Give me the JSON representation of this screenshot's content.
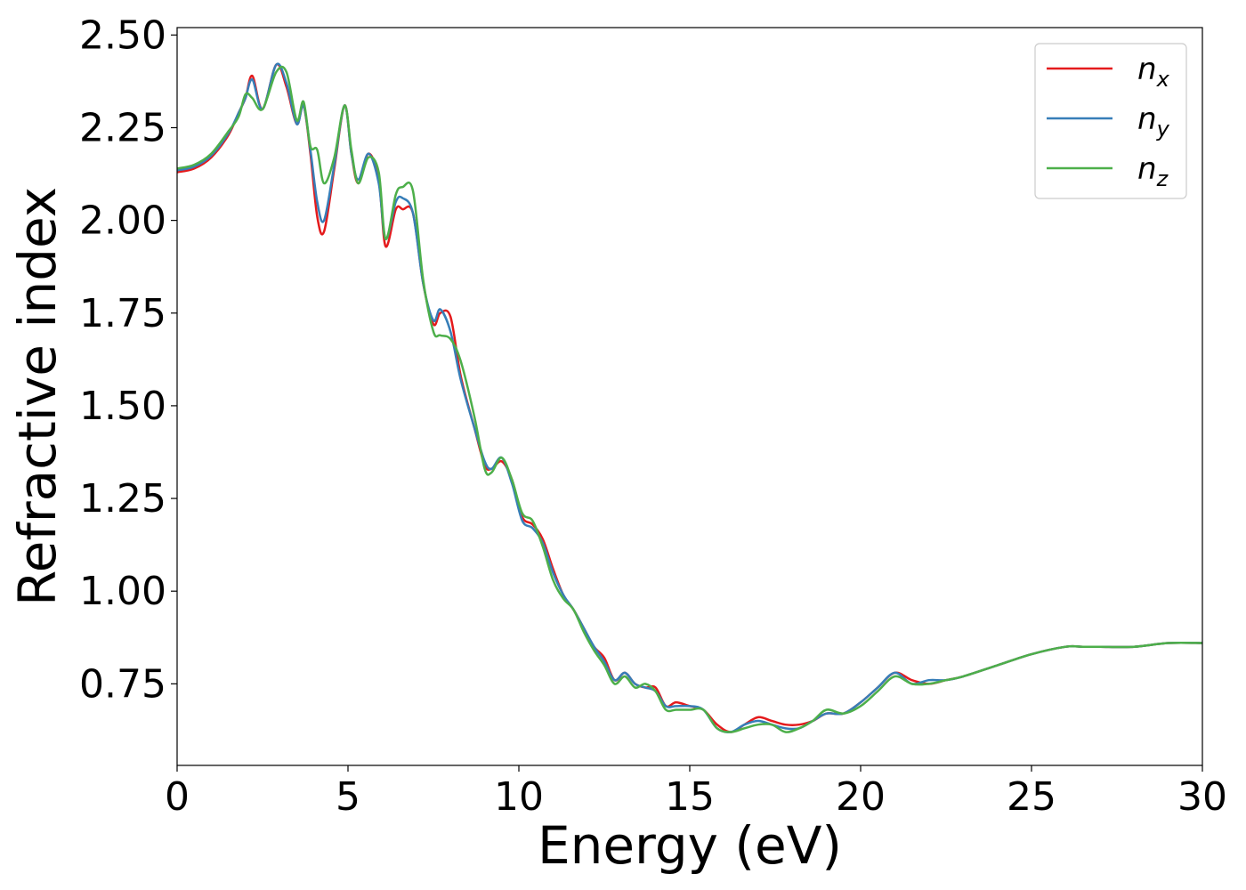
{
  "chart_data": {
    "type": "line",
    "xlabel": "Energy (eV)",
    "ylabel": "Refractive index",
    "xlim": [
      0,
      30
    ],
    "ylim": [
      0.53,
      2.52
    ],
    "xticks": [
      0,
      5,
      10,
      15,
      20,
      25,
      30
    ],
    "xtick_labels": [
      "0",
      "5",
      "10",
      "15",
      "20",
      "25",
      "30"
    ],
    "yticks": [
      0.75,
      1.0,
      1.25,
      1.5,
      1.75,
      2.0,
      2.25,
      2.5
    ],
    "ytick_labels": [
      "0.75",
      "1.00",
      "1.25",
      "1.50",
      "1.75",
      "2.00",
      "2.25",
      "2.50"
    ],
    "grid": false,
    "legend_position": "top-right",
    "series": [
      {
        "name": "n",
        "subscript": "x",
        "color": "#e41a1c",
        "points": [
          [
            0,
            2.13
          ],
          [
            0.5,
            2.14
          ],
          [
            1,
            2.17
          ],
          [
            1.5,
            2.23
          ],
          [
            1.8,
            2.29
          ],
          [
            2.0,
            2.33
          ],
          [
            2.2,
            2.39
          ],
          [
            2.5,
            2.3
          ],
          [
            2.9,
            2.42
          ],
          [
            3.2,
            2.36
          ],
          [
            3.5,
            2.26
          ],
          [
            3.7,
            2.31
          ],
          [
            3.9,
            2.18
          ],
          [
            4.1,
            2.01
          ],
          [
            4.3,
            1.97
          ],
          [
            4.6,
            2.14
          ],
          [
            4.9,
            2.31
          ],
          [
            5.1,
            2.18
          ],
          [
            5.3,
            2.1
          ],
          [
            5.6,
            2.18
          ],
          [
            5.9,
            2.11
          ],
          [
            6.1,
            1.93
          ],
          [
            6.4,
            2.03
          ],
          [
            6.6,
            2.03
          ],
          [
            6.9,
            2.02
          ],
          [
            7.2,
            1.83
          ],
          [
            7.5,
            1.72
          ],
          [
            7.7,
            1.75
          ],
          [
            8.0,
            1.74
          ],
          [
            8.3,
            1.58
          ],
          [
            8.7,
            1.44
          ],
          [
            9.0,
            1.34
          ],
          [
            9.2,
            1.33
          ],
          [
            9.5,
            1.35
          ],
          [
            9.8,
            1.3
          ],
          [
            10.1,
            1.2
          ],
          [
            10.4,
            1.18
          ],
          [
            10.7,
            1.14
          ],
          [
            11.0,
            1.06
          ],
          [
            11.3,
            0.99
          ],
          [
            11.6,
            0.95
          ],
          [
            11.9,
            0.9
          ],
          [
            12.2,
            0.85
          ],
          [
            12.5,
            0.82
          ],
          [
            12.8,
            0.76
          ],
          [
            13.1,
            0.78
          ],
          [
            13.4,
            0.75
          ],
          [
            13.7,
            0.74
          ],
          [
            14.0,
            0.74
          ],
          [
            14.3,
            0.69
          ],
          [
            14.6,
            0.7
          ],
          [
            15.0,
            0.69
          ],
          [
            15.4,
            0.68
          ],
          [
            15.8,
            0.64
          ],
          [
            16.2,
            0.62
          ],
          [
            16.6,
            0.64
          ],
          [
            17.0,
            0.66
          ],
          [
            17.4,
            0.65
          ],
          [
            17.8,
            0.64
          ],
          [
            18.2,
            0.64
          ],
          [
            18.6,
            0.65
          ],
          [
            19.0,
            0.67
          ],
          [
            19.5,
            0.67
          ],
          [
            20.0,
            0.7
          ],
          [
            20.5,
            0.74
          ],
          [
            21.0,
            0.78
          ],
          [
            21.5,
            0.76
          ],
          [
            22.0,
            0.75
          ],
          [
            22.5,
            0.76
          ],
          [
            23.0,
            0.77
          ],
          [
            24.0,
            0.8
          ],
          [
            25.0,
            0.83
          ],
          [
            26.0,
            0.85
          ],
          [
            26.5,
            0.85
          ],
          [
            27.0,
            0.85
          ],
          [
            28.0,
            0.85
          ],
          [
            29.0,
            0.86
          ],
          [
            30.0,
            0.86
          ]
        ]
      },
      {
        "name": "n",
        "subscript": "y",
        "color": "#377eb8",
        "points": [
          [
            0,
            2.135
          ],
          [
            0.5,
            2.145
          ],
          [
            1,
            2.175
          ],
          [
            1.5,
            2.235
          ],
          [
            1.8,
            2.29
          ],
          [
            2.0,
            2.33
          ],
          [
            2.2,
            2.38
          ],
          [
            2.5,
            2.3
          ],
          [
            2.9,
            2.42
          ],
          [
            3.2,
            2.37
          ],
          [
            3.5,
            2.26
          ],
          [
            3.7,
            2.31
          ],
          [
            3.9,
            2.19
          ],
          [
            4.1,
            2.05
          ],
          [
            4.3,
            2.0
          ],
          [
            4.6,
            2.15
          ],
          [
            4.9,
            2.31
          ],
          [
            5.1,
            2.18
          ],
          [
            5.3,
            2.11
          ],
          [
            5.6,
            2.18
          ],
          [
            5.9,
            2.1
          ],
          [
            6.1,
            1.95
          ],
          [
            6.4,
            2.05
          ],
          [
            6.6,
            2.06
          ],
          [
            6.9,
            2.02
          ],
          [
            7.2,
            1.83
          ],
          [
            7.5,
            1.73
          ],
          [
            7.7,
            1.76
          ],
          [
            8.0,
            1.7
          ],
          [
            8.3,
            1.57
          ],
          [
            8.7,
            1.44
          ],
          [
            9.0,
            1.35
          ],
          [
            9.2,
            1.33
          ],
          [
            9.5,
            1.36
          ],
          [
            9.8,
            1.29
          ],
          [
            10.1,
            1.19
          ],
          [
            10.4,
            1.17
          ],
          [
            10.7,
            1.13
          ],
          [
            11.0,
            1.05
          ],
          [
            11.3,
            0.99
          ],
          [
            11.6,
            0.95
          ],
          [
            11.9,
            0.9
          ],
          [
            12.2,
            0.85
          ],
          [
            12.5,
            0.81
          ],
          [
            12.8,
            0.76
          ],
          [
            13.1,
            0.78
          ],
          [
            13.4,
            0.75
          ],
          [
            13.7,
            0.74
          ],
          [
            14.0,
            0.73
          ],
          [
            14.3,
            0.69
          ],
          [
            14.6,
            0.69
          ],
          [
            15.0,
            0.69
          ],
          [
            15.4,
            0.68
          ],
          [
            15.8,
            0.63
          ],
          [
            16.2,
            0.62
          ],
          [
            16.6,
            0.64
          ],
          [
            17.0,
            0.65
          ],
          [
            17.4,
            0.64
          ],
          [
            17.8,
            0.63
          ],
          [
            18.2,
            0.63
          ],
          [
            18.6,
            0.65
          ],
          [
            19.0,
            0.67
          ],
          [
            19.5,
            0.67
          ],
          [
            20.0,
            0.7
          ],
          [
            20.5,
            0.74
          ],
          [
            21.0,
            0.78
          ],
          [
            21.5,
            0.75
          ],
          [
            22.0,
            0.76
          ],
          [
            22.5,
            0.76
          ],
          [
            23.0,
            0.77
          ],
          [
            24.0,
            0.8
          ],
          [
            25.0,
            0.83
          ],
          [
            26.0,
            0.85
          ],
          [
            26.5,
            0.85
          ],
          [
            27.0,
            0.85
          ],
          [
            28.0,
            0.85
          ],
          [
            29.0,
            0.86
          ],
          [
            30.0,
            0.86
          ]
        ]
      },
      {
        "name": "n",
        "subscript": "z",
        "color": "#4daf4a",
        "points": [
          [
            0,
            2.14
          ],
          [
            0.5,
            2.15
          ],
          [
            1,
            2.18
          ],
          [
            1.5,
            2.24
          ],
          [
            1.8,
            2.28
          ],
          [
            2.0,
            2.34
          ],
          [
            2.2,
            2.33
          ],
          [
            2.5,
            2.3
          ],
          [
            2.9,
            2.4
          ],
          [
            3.2,
            2.4
          ],
          [
            3.5,
            2.27
          ],
          [
            3.7,
            2.32
          ],
          [
            3.9,
            2.2
          ],
          [
            4.1,
            2.19
          ],
          [
            4.3,
            2.1
          ],
          [
            4.6,
            2.17
          ],
          [
            4.9,
            2.31
          ],
          [
            5.1,
            2.19
          ],
          [
            5.3,
            2.1
          ],
          [
            5.6,
            2.17
          ],
          [
            5.9,
            2.13
          ],
          [
            6.1,
            1.95
          ],
          [
            6.4,
            2.07
          ],
          [
            6.6,
            2.09
          ],
          [
            6.9,
            2.08
          ],
          [
            7.2,
            1.84
          ],
          [
            7.5,
            1.7
          ],
          [
            7.7,
            1.69
          ],
          [
            8.0,
            1.68
          ],
          [
            8.3,
            1.62
          ],
          [
            8.7,
            1.47
          ],
          [
            9.0,
            1.33
          ],
          [
            9.2,
            1.32
          ],
          [
            9.5,
            1.36
          ],
          [
            9.8,
            1.3
          ],
          [
            10.1,
            1.21
          ],
          [
            10.4,
            1.19
          ],
          [
            10.7,
            1.12
          ],
          [
            11.0,
            1.03
          ],
          [
            11.3,
            0.98
          ],
          [
            11.6,
            0.95
          ],
          [
            11.9,
            0.89
          ],
          [
            12.2,
            0.84
          ],
          [
            12.5,
            0.8
          ],
          [
            12.8,
            0.75
          ],
          [
            13.1,
            0.77
          ],
          [
            13.4,
            0.74
          ],
          [
            13.7,
            0.75
          ],
          [
            14.0,
            0.73
          ],
          [
            14.3,
            0.68
          ],
          [
            14.6,
            0.68
          ],
          [
            15.0,
            0.68
          ],
          [
            15.4,
            0.68
          ],
          [
            15.8,
            0.63
          ],
          [
            16.2,
            0.62
          ],
          [
            16.6,
            0.63
          ],
          [
            17.0,
            0.64
          ],
          [
            17.4,
            0.64
          ],
          [
            17.8,
            0.62
          ],
          [
            18.2,
            0.63
          ],
          [
            18.6,
            0.65
          ],
          [
            19.0,
            0.68
          ],
          [
            19.5,
            0.67
          ],
          [
            20.0,
            0.69
          ],
          [
            20.5,
            0.73
          ],
          [
            21.0,
            0.77
          ],
          [
            21.5,
            0.75
          ],
          [
            22.0,
            0.75
          ],
          [
            22.5,
            0.76
          ],
          [
            23.0,
            0.77
          ],
          [
            24.0,
            0.8
          ],
          [
            25.0,
            0.83
          ],
          [
            26.0,
            0.85
          ],
          [
            26.5,
            0.85
          ],
          [
            27.0,
            0.85
          ],
          [
            28.0,
            0.85
          ],
          [
            29.0,
            0.86
          ],
          [
            30.0,
            0.86
          ]
        ]
      }
    ]
  }
}
